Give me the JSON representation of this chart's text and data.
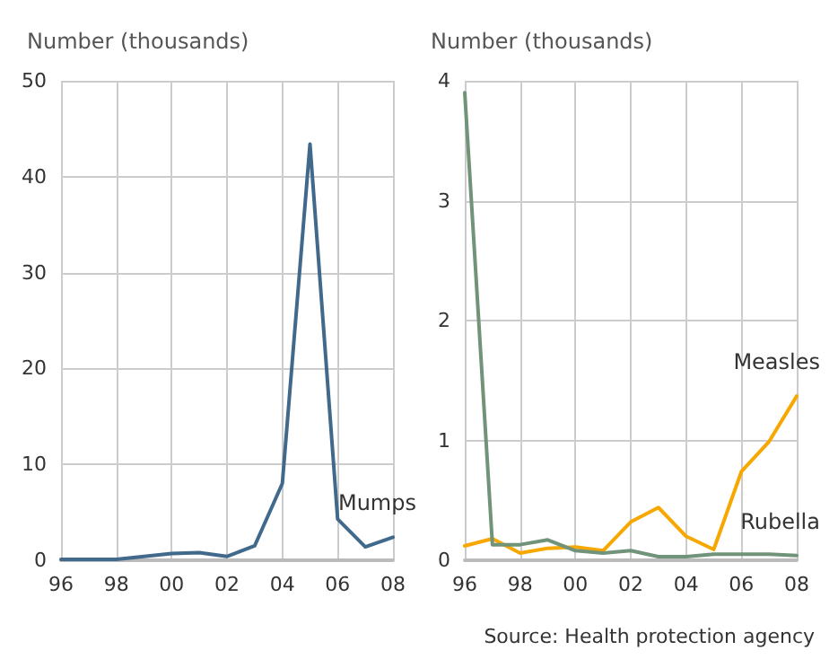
{
  "chart_data": [
    {
      "type": "line",
      "ylabel": "Number (thousands)",
      "x": [
        1996,
        1997,
        1998,
        1999,
        2000,
        2001,
        2002,
        2003,
        2004,
        2005,
        2006,
        2007,
        2008
      ],
      "xlim": [
        1996,
        2008
      ],
      "xticks": [
        {
          "value": 1996,
          "label": "96"
        },
        {
          "value": 1998,
          "label": "98"
        },
        {
          "value": 2000,
          "label": "00"
        },
        {
          "value": 2002,
          "label": "02"
        },
        {
          "value": 2004,
          "label": "04"
        },
        {
          "value": 2006,
          "label": "06"
        },
        {
          "value": 2008,
          "label": "08"
        }
      ],
      "ylim": [
        0,
        50
      ],
      "yticks": [
        0,
        10,
        20,
        30,
        40,
        50
      ],
      "grid": true,
      "legend": false,
      "series": [
        {
          "name": "Mumps",
          "color": "#41698b",
          "values": [
            0.1,
            0.1,
            0.1,
            0.4,
            0.7,
            0.8,
            0.4,
            1.5,
            8.0,
            43.4,
            4.3,
            1.4,
            2.4
          ]
        }
      ]
    },
    {
      "type": "line",
      "ylabel": "Number (thousands)",
      "x": [
        1996,
        1997,
        1998,
        1999,
        2000,
        2001,
        2002,
        2003,
        2004,
        2005,
        2006,
        2007,
        2008
      ],
      "xlim": [
        1996,
        2008
      ],
      "xticks": [
        {
          "value": 1996,
          "label": "96"
        },
        {
          "value": 1998,
          "label": "98"
        },
        {
          "value": 2000,
          "label": "00"
        },
        {
          "value": 2002,
          "label": "02"
        },
        {
          "value": 2004,
          "label": "04"
        },
        {
          "value": 2006,
          "label": "06"
        },
        {
          "value": 2008,
          "label": "08"
        }
      ],
      "ylim": [
        0,
        4
      ],
      "yticks": [
        0,
        1,
        2,
        3,
        4
      ],
      "grid": true,
      "legend": false,
      "annotations": [
        "Source: Health protection agency"
      ],
      "series": [
        {
          "name": "Measles",
          "color": "#f7a800",
          "values": [
            0.12,
            0.18,
            0.06,
            0.1,
            0.11,
            0.08,
            0.32,
            0.44,
            0.2,
            0.09,
            0.74,
            0.99,
            1.37
          ]
        },
        {
          "name": "Rubella",
          "color": "#71937a",
          "values": [
            3.9,
            0.13,
            0.13,
            0.17,
            0.08,
            0.06,
            0.08,
            0.03,
            0.03,
            0.05,
            0.05,
            0.05,
            0.04
          ]
        }
      ]
    }
  ]
}
